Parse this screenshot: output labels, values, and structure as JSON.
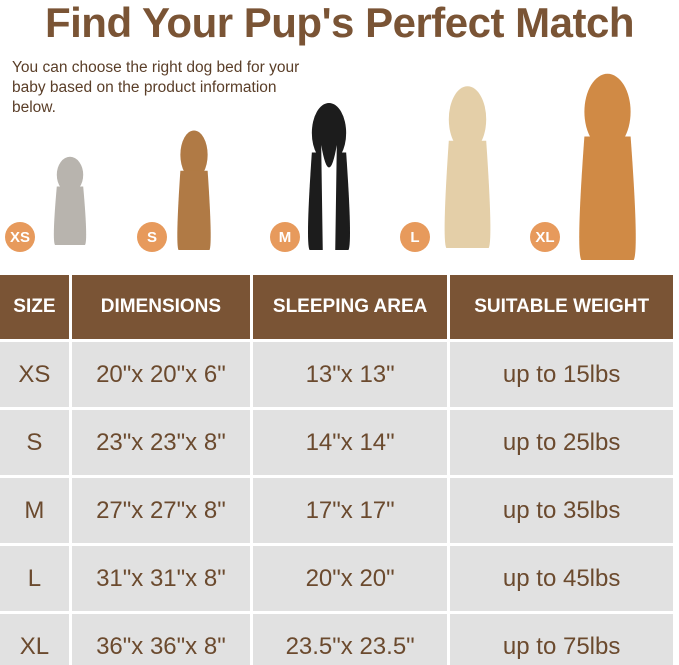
{
  "title": "Find Your Pup's Perfect Match",
  "subtitle": "You can choose the right dog bed for your baby based on the product information below.",
  "pets": [
    {
      "size": "XS",
      "kind": "cat",
      "color": "#b8b4ae"
    },
    {
      "size": "S",
      "kind": "french-bulldog",
      "color": "#b07a45"
    },
    {
      "size": "M",
      "kind": "border-collie",
      "color": "#1c1c1c"
    },
    {
      "size": "L",
      "kind": "golden-retriever",
      "color": "#e4cfa8"
    },
    {
      "size": "XL",
      "kind": "golden-retriever",
      "color": "#d08a45"
    }
  ],
  "colors": {
    "accent": "#7a5435",
    "badge": "#e79a5c",
    "cell": "#e1e1e1"
  },
  "table": {
    "headers": [
      "SIZE",
      "DIMENSIONS",
      "SLEEPING AREA",
      "SUITABLE WEIGHT"
    ],
    "rows": [
      [
        "XS",
        "20\"x 20\"x 6\"",
        "13\"x 13\"",
        "up to 15lbs"
      ],
      [
        "S",
        "23\"x 23\"x 8\"",
        "14\"x 14\"",
        "up to 25lbs"
      ],
      [
        "M",
        "27\"x 27\"x 8\"",
        "17\"x 17\"",
        "up to 35lbs"
      ],
      [
        "L",
        "31\"x 31\"x 8\"",
        "20\"x 20\"",
        "up to 45lbs"
      ],
      [
        "XL",
        "36\"x 36\"x 8\"",
        "23.5\"x 23.5\"",
        "up to 75lbs"
      ]
    ]
  }
}
